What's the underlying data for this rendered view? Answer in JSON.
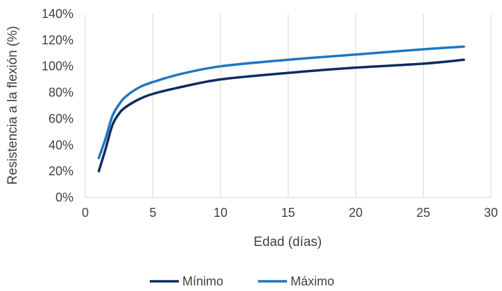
{
  "chart_data": {
    "type": "line",
    "title": "",
    "xlabel": "Edad (días)",
    "ylabel": "Resistencia a la flexión (%)",
    "xlim": [
      0,
      30
    ],
    "ylim": [
      0,
      140
    ],
    "x_ticks": [
      "0",
      "5",
      "10",
      "15",
      "20",
      "25",
      "30"
    ],
    "y_ticks": [
      "0%",
      "20%",
      "40%",
      "60%",
      "80%",
      "100%",
      "120%",
      "140%"
    ],
    "grid": "vertical",
    "legend_position": "bottom",
    "series": [
      {
        "name": "Mínimo",
        "color": "#0d2b5e",
        "points": [
          [
            1,
            20
          ],
          [
            1.5,
            37
          ],
          [
            2,
            55
          ],
          [
            2.5,
            64
          ],
          [
            3,
            69
          ],
          [
            4,
            75
          ],
          [
            5,
            79
          ],
          [
            7,
            84
          ],
          [
            10,
            90
          ],
          [
            15,
            95
          ],
          [
            20,
            99
          ],
          [
            25,
            102
          ],
          [
            28,
            105
          ]
        ]
      },
      {
        "name": "Máximo",
        "color": "#1f77c0",
        "points": [
          [
            1,
            30
          ],
          [
            1.5,
            45
          ],
          [
            2,
            62
          ],
          [
            2.5,
            71
          ],
          [
            3,
            77
          ],
          [
            4,
            84
          ],
          [
            5,
            88
          ],
          [
            7,
            94
          ],
          [
            10,
            100
          ],
          [
            15,
            105
          ],
          [
            20,
            109
          ],
          [
            25,
            113
          ],
          [
            28,
            115
          ]
        ]
      }
    ]
  }
}
